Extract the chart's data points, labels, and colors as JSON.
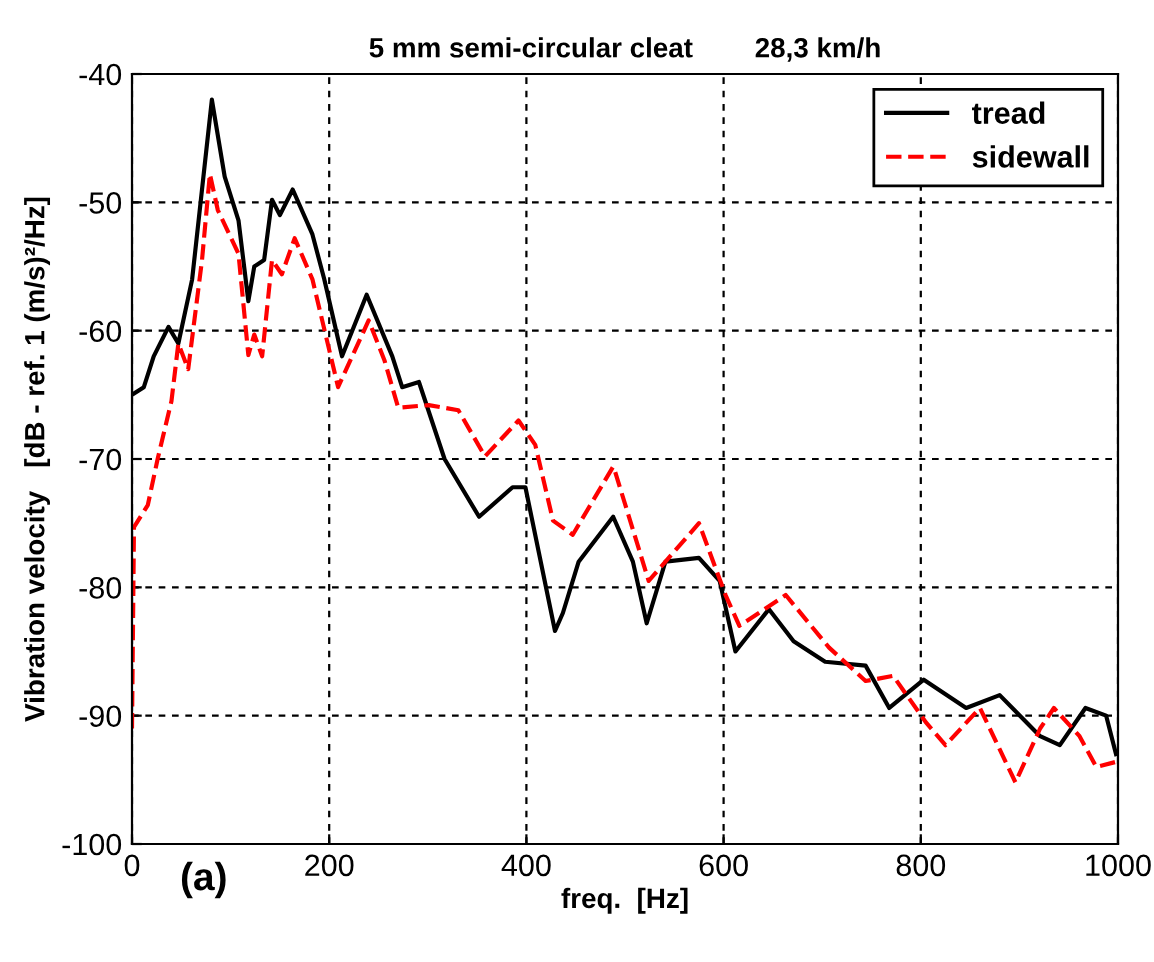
{
  "chart_data": {
    "type": "line",
    "title": "5 mm semi-circular cleat        28,3 km/h",
    "xlabel": "freq.  [Hz]",
    "ylabel": "Vibration velocity   [dB - ref. 1 (m/s)²/Hz]",
    "annotations": [
      "(a)"
    ],
    "xlim": [
      0,
      1000
    ],
    "ylim": [
      -100,
      -40
    ],
    "xticks": [
      0,
      200,
      400,
      600,
      800,
      1000
    ],
    "yticks": [
      -100,
      -90,
      -80,
      -70,
      -60,
      -50,
      -40
    ],
    "grid": true,
    "legend": "top right",
    "series": [
      {
        "name": "tread",
        "color": "#000000",
        "line_style": "solid",
        "x": [
          0,
          12,
          22,
          37,
          47,
          61,
          81,
          94,
          108,
          118,
          124,
          134,
          142,
          150,
          163,
          183,
          195,
          213,
          238,
          264,
          274,
          291,
          317,
          352,
          386,
          399,
          429,
          437,
          453,
          488,
          508,
          522,
          541,
          575,
          596,
          612,
          646,
          671,
          703,
          744,
          768,
          803,
          846,
          880,
          921,
          941,
          967,
          988,
          998
        ],
        "values": [
          -65,
          -64.4,
          -62,
          -59.7,
          -61,
          -56,
          -42,
          -48,
          -51.4,
          -57.7,
          -55,
          -54.5,
          -49.8,
          -51,
          -49,
          -52.5,
          -56,
          -62,
          -57.2,
          -62,
          -64.4,
          -64,
          -70,
          -74.5,
          -72.2,
          -72.2,
          -83.4,
          -82,
          -78,
          -74.5,
          -78,
          -82.8,
          -78,
          -77.7,
          -79.5,
          -85,
          -81.7,
          -84.2,
          -85.8,
          -86.1,
          -89.4,
          -87.2,
          -89.4,
          -88.4,
          -91.6,
          -92.3,
          -89.4,
          -90,
          -93
        ]
      },
      {
        "name": "sidewall",
        "color": "#ff0000",
        "line_style": "dashed",
        "x": [
          0,
          2,
          16,
          26,
          40,
          47,
          57,
          71,
          79,
          87,
          108,
          118,
          124,
          132,
          142,
          152,
          165,
          183,
          209,
          240,
          256,
          270,
          301,
          331,
          358,
          392,
          409,
          427,
          447,
          488,
          490,
          524,
          575,
          602,
          616,
          663,
          707,
          744,
          772,
          805,
          825,
          860,
          896,
          921,
          935,
          961,
          978,
          998
        ],
        "values": [
          -91,
          -75.3,
          -73.6,
          -70,
          -65.5,
          -61,
          -63,
          -54.5,
          -47.8,
          -50.6,
          -54,
          -61.9,
          -60.3,
          -62,
          -54.5,
          -55.6,
          -52.8,
          -56,
          -64.4,
          -59.2,
          -62.3,
          -66,
          -65.8,
          -66.2,
          -69.8,
          -67,
          -68.9,
          -74.8,
          -75.9,
          -70.6,
          -71,
          -79.5,
          -75,
          -80.6,
          -83,
          -80.6,
          -84.7,
          -87.3,
          -86.9,
          -90.5,
          -92.3,
          -89.4,
          -95.2,
          -91,
          -89.4,
          -91.6,
          -94,
          -93.6
        ]
      }
    ]
  }
}
